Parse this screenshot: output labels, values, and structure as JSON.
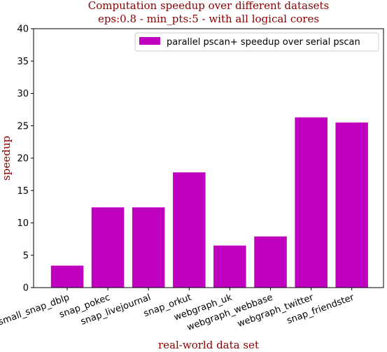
{
  "chart_data": {
    "type": "bar",
    "title_line1": "Computation speedup over different datasets",
    "title_line2": "eps:0.8 - min_pts:5 - with all logical cores",
    "xlabel": "real-world data set",
    "ylabel": "speedup",
    "ylim": [
      0,
      40
    ],
    "yticks": [
      "0",
      "5",
      "10",
      "15",
      "20",
      "25",
      "30",
      "35",
      "40"
    ],
    "categories": [
      "small_snap_dblp",
      "snap_pokec",
      "snap_livejournal",
      "snap_orkut",
      "webgraph_uk",
      "webgraph_webbase",
      "webgraph_twitter",
      "snap_friendster"
    ],
    "series": [
      {
        "name": "parallel pscan+ speedup over serial pscan",
        "values": [
          3.4,
          12.4,
          12.4,
          17.8,
          6.5,
          7.9,
          26.3,
          25.5
        ],
        "color": "#bf00bf"
      }
    ],
    "legend_position": "top-right",
    "title_color": "#8b0000",
    "grid": false
  }
}
